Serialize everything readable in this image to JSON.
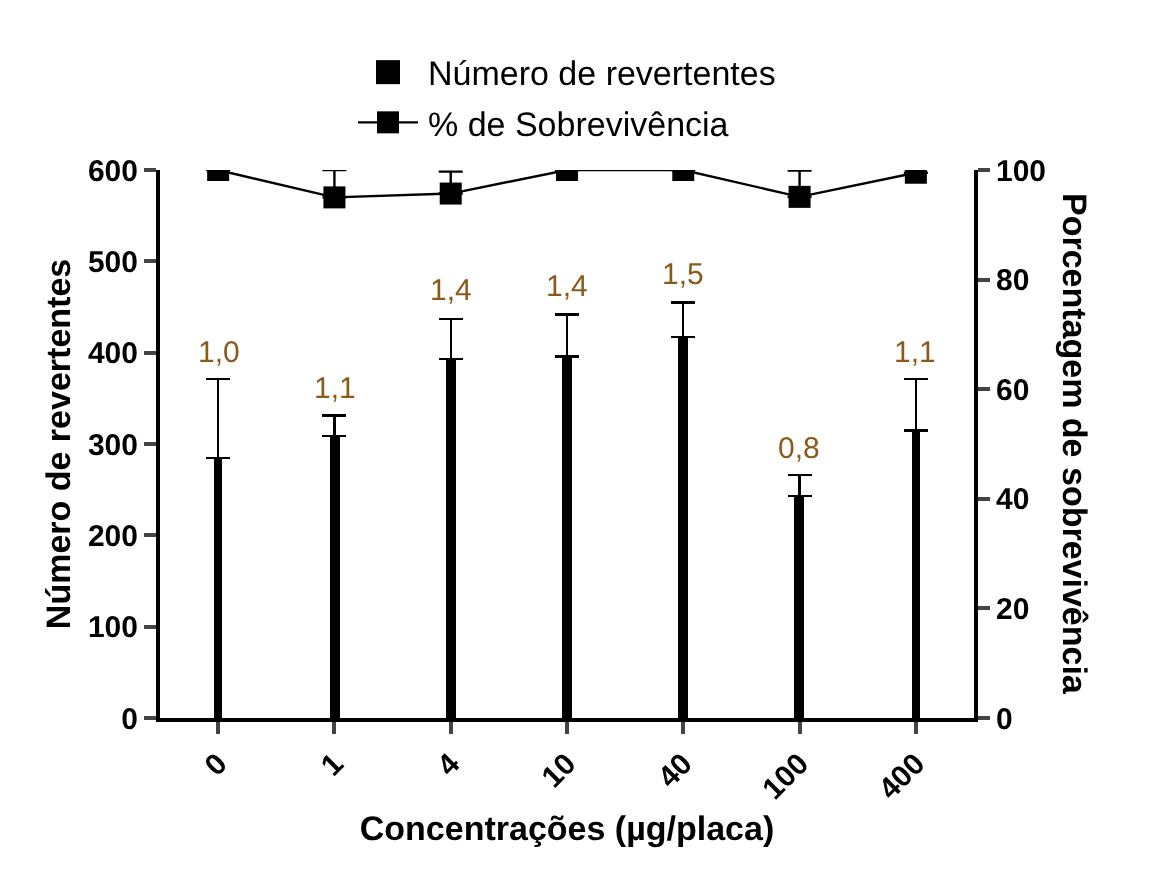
{
  "chart_data": {
    "type": "bar",
    "xlabel": "Concentrações (µg/placa)",
    "ylabel": "Número de revertentes",
    "y2label": "Porcentagem de sobrevivência",
    "categories": [
      "0",
      "1",
      "4",
      "10",
      "40",
      "100",
      "400"
    ],
    "series": [
      {
        "name": "Número de revertentes",
        "color": "#000000",
        "values": [
          285,
          309,
          393,
          396,
          417,
          243,
          315
        ],
        "errors": [
          [
            285,
            371
          ],
          [
            309,
            331
          ],
          [
            393,
            437
          ],
          [
            396,
            442
          ],
          [
            417,
            455
          ],
          [
            243,
            266
          ],
          [
            315,
            371
          ]
        ]
      },
      {
        "name": "% de Sobrevivência",
        "type": "line",
        "axis": "y2",
        "color": "#000000",
        "marker": "square",
        "values": [
          100,
          95,
          95.7,
          100,
          100,
          95.1,
          99.5
        ],
        "errors": [
          null,
          [
            95,
            100
          ],
          [
            95.7,
            99.7
          ],
          null,
          null,
          [
            95.1,
            99.9
          ],
          null
        ]
      }
    ],
    "annotations": [
      {
        "text": "1,0",
        "x": "0",
        "y": 371
      },
      {
        "text": "1,1",
        "x": "1",
        "y": 331
      },
      {
        "text": "1,4",
        "x": "4",
        "y": 437
      },
      {
        "text": "1,4",
        "x": "10",
        "y": 442
      },
      {
        "text": "1,5",
        "x": "40",
        "y": 455
      },
      {
        "text": "0,8",
        "x": "100",
        "y": 266
      },
      {
        "text": "1,1",
        "x": "400",
        "y": 371
      }
    ],
    "ylim": [
      0,
      600
    ],
    "yticks": [
      0,
      100,
      200,
      300,
      400,
      500,
      600
    ],
    "y2lim": [
      0,
      100
    ],
    "y2ticks": [
      0,
      20,
      40,
      60,
      80,
      100
    ],
    "legend": "top"
  }
}
